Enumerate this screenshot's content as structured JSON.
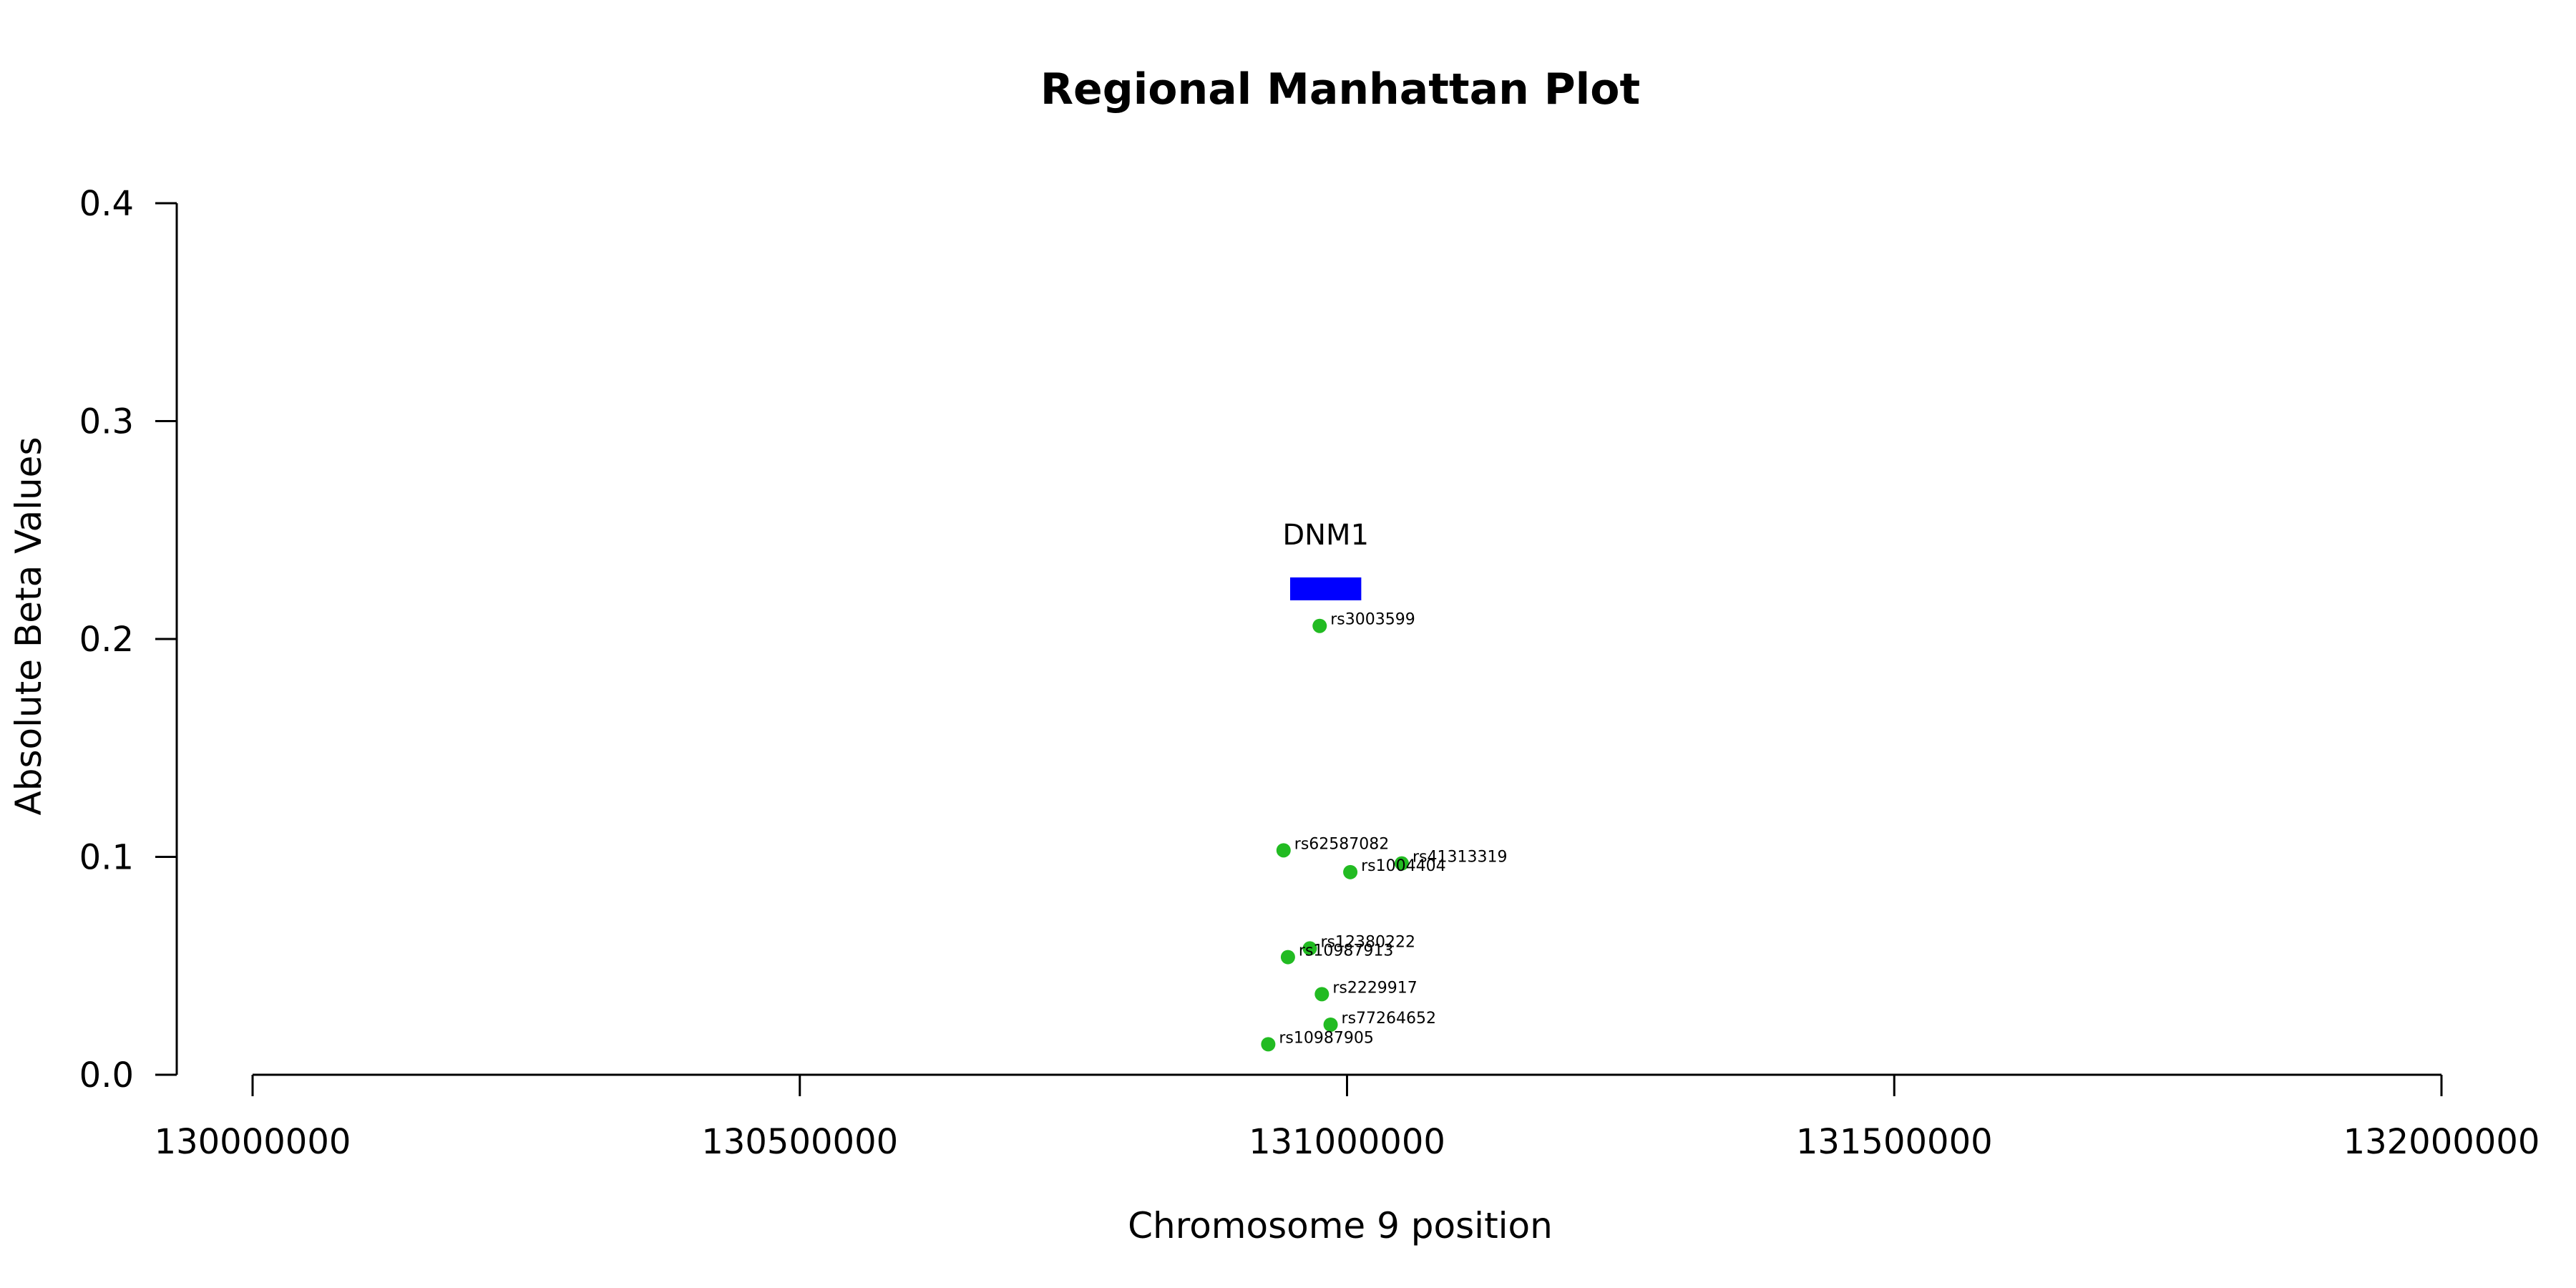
{
  "chart_data": {
    "type": "scatter",
    "title": "Regional Manhattan Plot",
    "xlabel": "Chromosome 9 position",
    "ylabel": "Absolute Beta Values",
    "xlim": [
      130000000,
      132000000
    ],
    "ylim": [
      0,
      0.4
    ],
    "x_ticks": [
      130000000,
      130500000,
      131000000,
      131500000,
      132000000
    ],
    "x_tick_labels": [
      "130000000",
      "130500000",
      "131000000",
      "131500000",
      "132000000"
    ],
    "y_ticks": [
      0,
      0.1,
      0.2,
      0.3,
      0.4
    ],
    "y_tick_labels": [
      "0.0",
      "0.1",
      "0.2",
      "0.3",
      "0.4"
    ],
    "grid": false,
    "point_color": "#22bb22",
    "points": [
      {
        "label": "rs3003599",
        "x": 130975000,
        "y": 0.206
      },
      {
        "label": "rs62587082",
        "x": 130942000,
        "y": 0.103
      },
      {
        "label": "rs41313319",
        "x": 131050000,
        "y": 0.097
      },
      {
        "label": "rs1004404",
        "x": 131003000,
        "y": 0.093
      },
      {
        "label": "rs12380222",
        "x": 130966000,
        "y": 0.058
      },
      {
        "label": "rs10987913",
        "x": 130946000,
        "y": 0.054
      },
      {
        "label": "rs2229917",
        "x": 130977000,
        "y": 0.037
      },
      {
        "label": "rs77264652",
        "x": 130985000,
        "y": 0.023
      },
      {
        "label": "rs10987905",
        "x": 130928000,
        "y": 0.014
      }
    ],
    "genes": [
      {
        "name": "DNM1",
        "start": 130948000,
        "end": 131013000,
        "y": 0.223,
        "color": "#0000ff"
      }
    ]
  }
}
